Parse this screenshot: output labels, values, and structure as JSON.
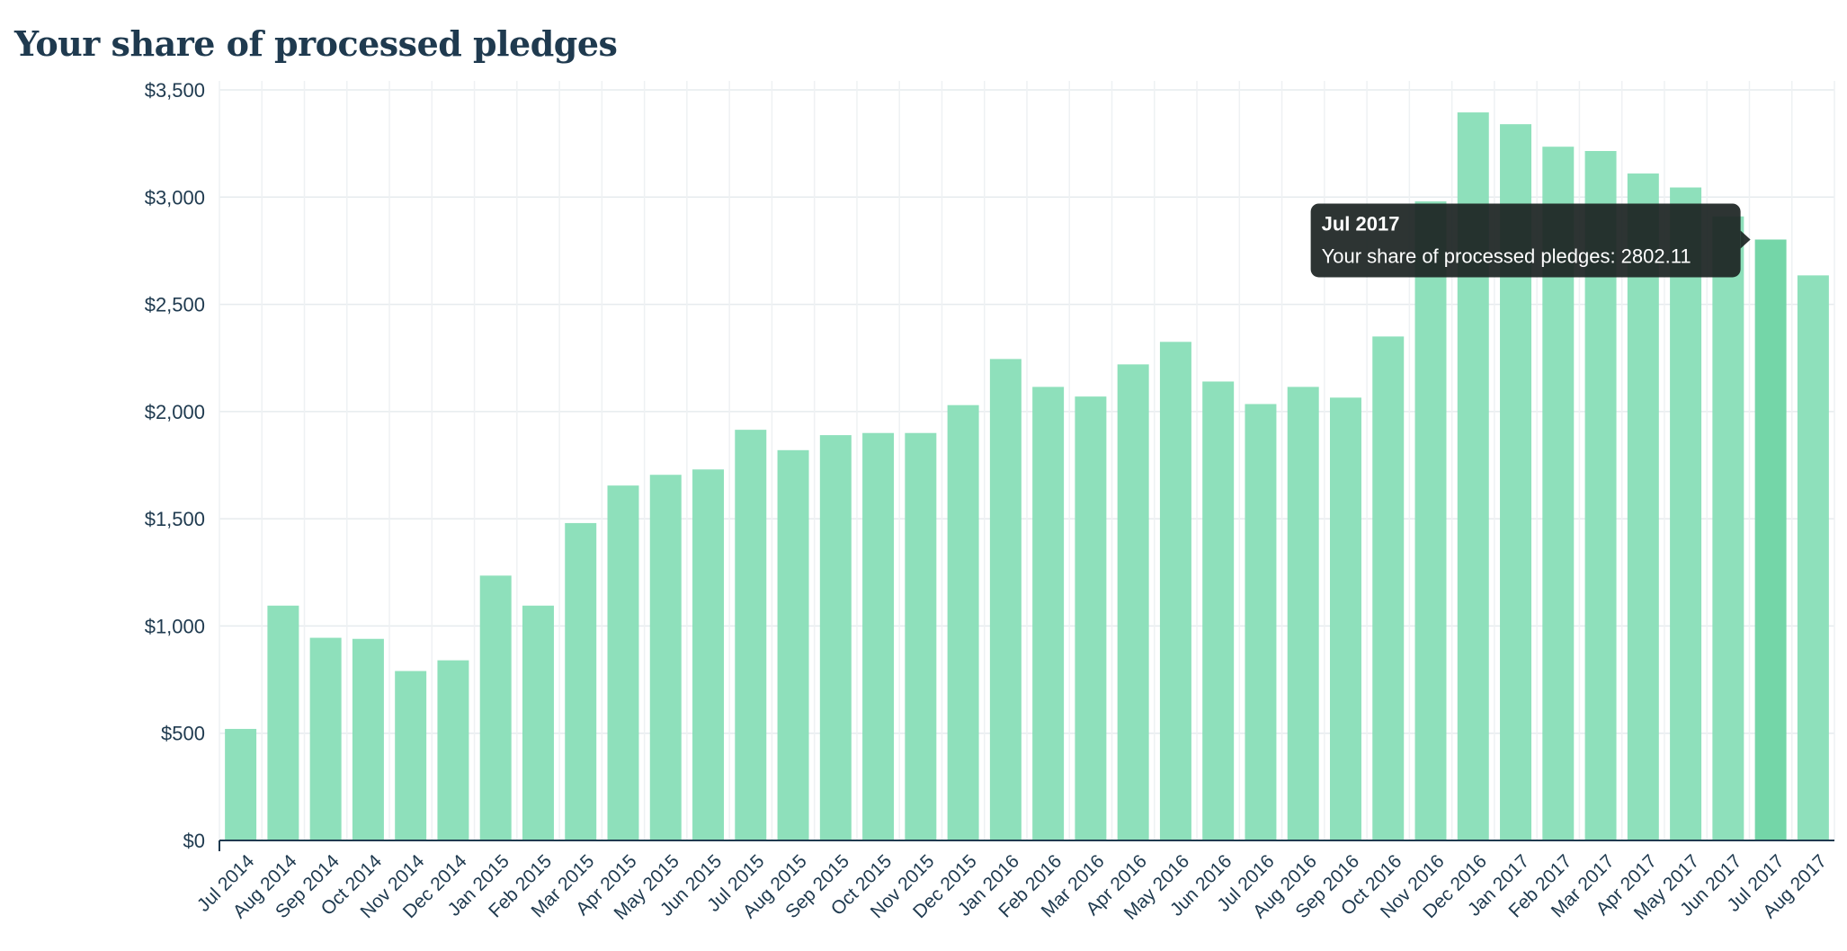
{
  "title": "Your share of processed pledges",
  "chart_data": {
    "type": "bar",
    "title": "Your share of processed pledges",
    "xlabel": "",
    "ylabel": "",
    "ylim": [
      0,
      3500
    ],
    "yticks": [
      0,
      500,
      1000,
      1500,
      2000,
      2500,
      3000,
      3500
    ],
    "ytick_labels": [
      "$0",
      "$500",
      "$1,000",
      "$1,500",
      "$2,000",
      "$2,500",
      "$3,000",
      "$3,500"
    ],
    "grid": true,
    "bar_color": "#8ee0bb",
    "highlight_color": "#74d6a8",
    "categories": [
      "Jul 2014",
      "Aug 2014",
      "Sep 2014",
      "Oct 2014",
      "Nov 2014",
      "Dec 2014",
      "Jan 2015",
      "Feb 2015",
      "Mar 2015",
      "Apr 2015",
      "May 2015",
      "Jun 2015",
      "Jul 2015",
      "Aug 2015",
      "Sep 2015",
      "Oct 2015",
      "Nov 2015",
      "Dec 2015",
      "Jan 2016",
      "Feb 2016",
      "Mar 2016",
      "Apr 2016",
      "May 2016",
      "Jun 2016",
      "Jul 2016",
      "Aug 2016",
      "Sep 2016",
      "Oct 2016",
      "Nov 2016",
      "Dec 2016",
      "Jan 2017",
      "Feb 2017",
      "Mar 2017",
      "Apr 2017",
      "May 2017",
      "Jun 2017",
      "Jul 2017",
      "Aug 2017"
    ],
    "values": [
      520,
      1095,
      945,
      940,
      790,
      840,
      1235,
      1095,
      1480,
      1655,
      1705,
      1730,
      1915,
      1820,
      1890,
      1900,
      1900,
      2030,
      2245,
      2115,
      2070,
      2220,
      2325,
      2140,
      2035,
      2115,
      2065,
      2350,
      2980,
      3395,
      3340,
      3235,
      3215,
      3110,
      3045,
      2910,
      2802.11,
      2635
    ],
    "highlighted_index": 36,
    "tooltip": {
      "title": "Jul 2017",
      "body": "Your share of processed pledges: 2802.11"
    }
  }
}
